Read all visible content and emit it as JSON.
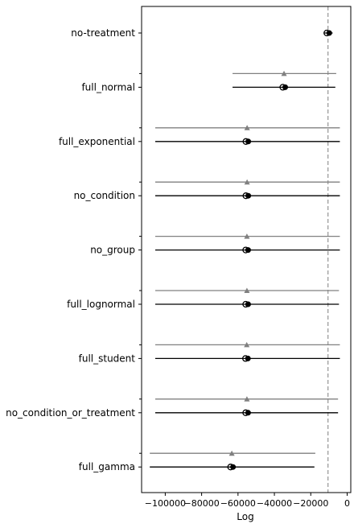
{
  "chart_data": {
    "type": "forest-plot",
    "xlabel": "Log",
    "ylabel": "",
    "xlim": [
      -113000,
      2000
    ],
    "xticks": [
      -100000,
      -80000,
      -60000,
      -40000,
      -20000,
      0
    ],
    "xtick_labels": [
      "−100000",
      "−80000",
      "−60000",
      "−40000",
      "−20000",
      "0"
    ],
    "reference_line": -10500,
    "categories": [
      "no-treatment",
      "full_normal",
      "full_exponential",
      "no_condition",
      "no_group",
      "full_lognormal",
      "full_student",
      "no_condition_or_treatment",
      "full_gamma"
    ],
    "series": [
      {
        "marker": "triangle",
        "color": "#808080",
        "values": [
          null,
          -34700,
          -55000,
          -55000,
          -55100,
          -55100,
          -55200,
          -55100,
          -63400
        ],
        "intervals": [
          null,
          [
            -63000,
            -6000
          ],
          [
            -105500,
            -4000
          ],
          [
            -105500,
            -4000
          ],
          [
            -105500,
            -4000
          ],
          [
            -105500,
            -4500
          ],
          [
            -105500,
            -4000
          ],
          [
            -105500,
            -5000
          ],
          [
            -108500,
            -17500
          ]
        ]
      },
      {
        "marker": "circle",
        "color": "#000000",
        "values": [
          -10500,
          -34700,
          -55000,
          -55000,
          -55100,
          -55100,
          -55200,
          -55100,
          -63400
        ],
        "intervals": [
          [
            -12500,
            -8000
          ],
          [
            -63000,
            -6500
          ],
          [
            -105500,
            -4000
          ],
          [
            -105500,
            -4000
          ],
          [
            -105500,
            -4000
          ],
          [
            -105500,
            -4500
          ],
          [
            -105500,
            -4000
          ],
          [
            -105500,
            -5000
          ],
          [
            -108500,
            -18000
          ]
        ]
      }
    ],
    "grid": false
  },
  "colors": {
    "reference_line": "#808080",
    "axes": "#000000",
    "background": "#ffffff"
  }
}
